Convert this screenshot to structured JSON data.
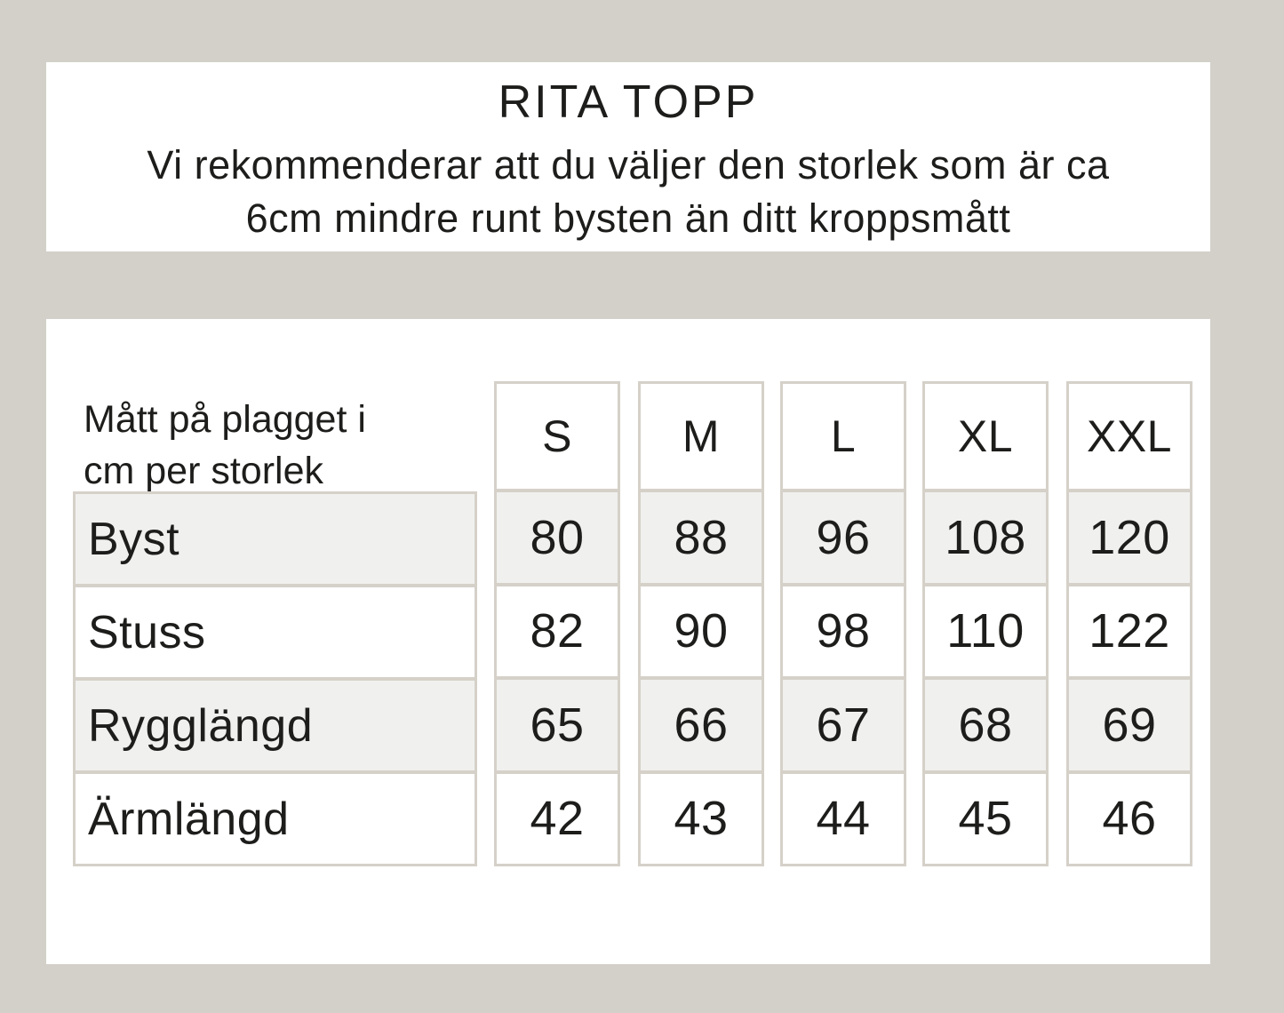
{
  "page": {
    "background_color": "#d3d0c9",
    "card_color": "#ffffff",
    "border_color": "#d5d1c9",
    "row_alt_color": "#f0f0ee",
    "text_color": "#1d1d1b"
  },
  "header": {
    "title": "RITA TOPP",
    "subtitle_line1": "Vi rekommenderar att du väljer den storlek som är ca",
    "subtitle_line2": "6cm mindre runt bysten än ditt kroppsmått"
  },
  "size_table": {
    "corner_label_line1": "Mått på plagget i",
    "corner_label_line2": "cm per storlek",
    "columns": [
      "S",
      "M",
      "L",
      "XL",
      "XXL"
    ],
    "rows": [
      {
        "label": "Byst",
        "values": [
          "80",
          "88",
          "96",
          "108",
          "120"
        ]
      },
      {
        "label": "Stuss",
        "values": [
          "82",
          "90",
          "98",
          "110",
          "122"
        ]
      },
      {
        "label": "Rygglängd",
        "values": [
          "65",
          "66",
          "67",
          "68",
          "69"
        ]
      },
      {
        "label": "Ärmlängd",
        "values": [
          "42",
          "43",
          "44",
          "45",
          "46"
        ]
      }
    ]
  }
}
